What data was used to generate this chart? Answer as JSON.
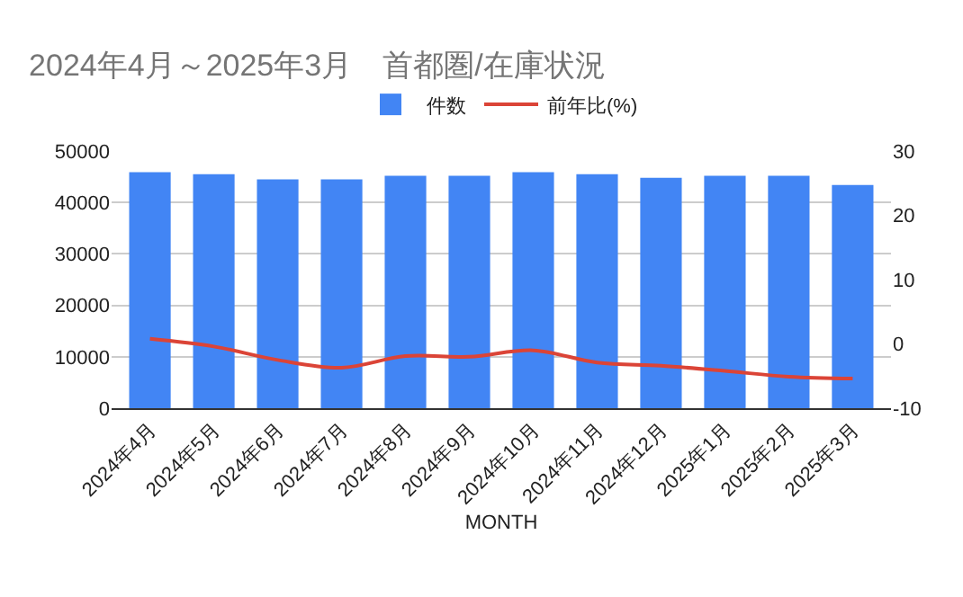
{
  "chart_data": {
    "type": "bar",
    "title": "2024年4月～2025年3月　首都圏/在庫状況",
    "xlabel": "MONTH",
    "categories": [
      "2024年4月",
      "2024年5月",
      "2024年6月",
      "2024年7月",
      "2024年8月",
      "2024年9月",
      "2024年10月",
      "2024年11月",
      "2024年12月",
      "2025年1月",
      "2025年2月",
      "2025年3月"
    ],
    "series": [
      {
        "name": "件数",
        "color": "#4285f4",
        "values": [
          45900,
          45500,
          44500,
          44500,
          45200,
          45200,
          45900,
          45500,
          44800,
          45200,
          45200,
          43400
        ]
      },
      {
        "name": "前年比(%)",
        "type": "line",
        "axis": "y2",
        "color": "#db4437",
        "values": [
          0.8,
          -0.4,
          -2.5,
          -3.7,
          -1.9,
          -2.0,
          -1.0,
          -2.9,
          -3.4,
          -4.2,
          -5.1,
          -5.4
        ]
      }
    ],
    "ylim": [
      0,
      50000
    ],
    "yticks": [
      0,
      10000,
      20000,
      30000,
      40000,
      50000
    ],
    "y2lim": [
      -10,
      30
    ],
    "y2ticks": [
      -10,
      0,
      10,
      20,
      30
    ],
    "grid": "y",
    "legend": "top",
    "marker": "none"
  }
}
